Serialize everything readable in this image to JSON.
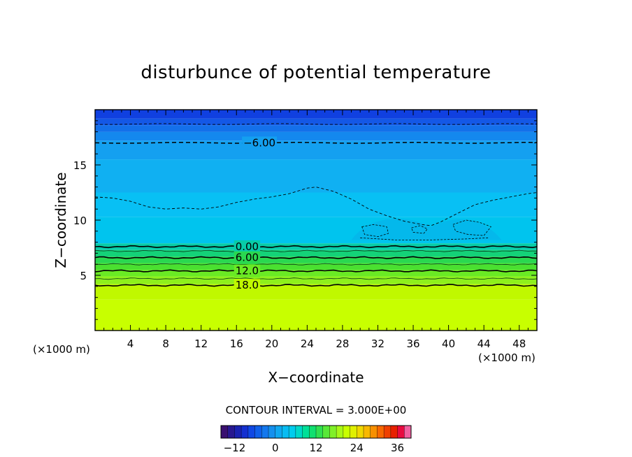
{
  "chart_data": {
    "type": "heatmap",
    "title": "disturbunce of potential temperature",
    "xlabel": "X−coordinate",
    "ylabel": "Z−coordinate",
    "x_unit": "(×1000 m)",
    "z_unit": "(×1000 m)",
    "xlim": [
      0,
      50
    ],
    "ylim": [
      0,
      20
    ],
    "x_ticks": [
      4,
      8,
      12,
      16,
      20,
      24,
      28,
      32,
      36,
      40,
      44,
      48
    ],
    "y_ticks": [
      5,
      10,
      15
    ],
    "contour_interval_text": "CONTOUR INTERVAL = 3.000E+00",
    "contour_labels": [
      {
        "text": "−6.00",
        "x": 18.6,
        "z": 17.0
      },
      {
        "text": "0.00",
        "x": 17.2,
        "z": 7.6
      },
      {
        "text": "6.00",
        "x": 17.2,
        "z": 6.6
      },
      {
        "text": "12.0",
        "x": 17.2,
        "z": 5.4
      },
      {
        "text": "18.0",
        "x": 17.2,
        "z": 4.1
      }
    ],
    "layers": [
      {
        "z0": 0.0,
        "z1": 2.8,
        "color": "#c8ff00"
      },
      {
        "z0": 2.8,
        "z1": 4.2,
        "color": "#c0f800"
      },
      {
        "z0": 4.2,
        "z1": 4.9,
        "color": "#8ef01c"
      },
      {
        "z0": 4.9,
        "z1": 5.5,
        "color": "#6aea24"
      },
      {
        "z0": 5.5,
        "z1": 6.1,
        "color": "#4ae030"
      },
      {
        "z0": 6.1,
        "z1": 6.7,
        "color": "#2ad850"
      },
      {
        "z0": 6.7,
        "z1": 7.3,
        "color": "#14d278"
      },
      {
        "z0": 7.3,
        "z1": 7.9,
        "color": "#08cca8"
      },
      {
        "z0": 7.9,
        "z1": 10.3,
        "color": "#00c4ee"
      },
      {
        "z0": 10.3,
        "z1": 12.5,
        "color": "#08c0f4"
      },
      {
        "z0": 12.5,
        "z1": 15.5,
        "color": "#10b0f2"
      },
      {
        "z0": 15.5,
        "z1": 17.2,
        "color": "#14a0f0"
      },
      {
        "z0": 17.2,
        "z1": 18.0,
        "color": "#1488ee"
      },
      {
        "z0": 18.0,
        "z1": 18.6,
        "color": "#1470ea"
      },
      {
        "z0": 18.6,
        "z1": 19.2,
        "color": "#1458e6"
      },
      {
        "z0": 19.2,
        "z1": 20.0,
        "color": "#1040e0"
      }
    ],
    "solid_contours_z": [
      4.1,
      5.4,
      6.6,
      7.6
    ],
    "thin_contours_z": [
      4.7,
      6.0,
      7.2
    ],
    "dashed_contours": [
      {
        "z": 17.0,
        "bold": true
      },
      {
        "z": 18.7,
        "bold": false
      }
    ],
    "dashed_curve_points": [
      [
        0,
        12.1
      ],
      [
        2,
        12.0
      ],
      [
        4,
        11.7
      ],
      [
        6,
        11.2
      ],
      [
        8,
        11.0
      ],
      [
        10,
        11.1
      ],
      [
        12,
        11.0
      ],
      [
        14,
        11.2
      ],
      [
        16,
        11.6
      ],
      [
        18,
        11.9
      ],
      [
        20,
        12.1
      ],
      [
        22,
        12.4
      ],
      [
        24,
        12.9
      ],
      [
        25,
        13.0
      ],
      [
        27,
        12.6
      ],
      [
        29,
        11.9
      ],
      [
        31,
        11.0
      ],
      [
        33,
        10.4
      ],
      [
        35,
        9.9
      ],
      [
        37,
        9.6
      ],
      [
        38,
        9.5
      ],
      [
        39,
        9.8
      ],
      [
        41,
        10.6
      ],
      [
        43,
        11.4
      ],
      [
        45,
        11.8
      ],
      [
        47,
        12.1
      ],
      [
        49,
        12.4
      ],
      [
        50,
        12.5
      ]
    ],
    "colorbar": {
      "range": [
        -16,
        40
      ],
      "ticks": [
        -12,
        0,
        12,
        24,
        36
      ],
      "tick_labels": [
        "−12",
        "0",
        "12",
        "24",
        "36"
      ],
      "colors": [
        "#3a1070",
        "#281890",
        "#1a22b0",
        "#1430d0",
        "#1048e4",
        "#1060ea",
        "#1478ee",
        "#1490ee",
        "#10a8f0",
        "#08bcf2",
        "#00ccee",
        "#00d8c8",
        "#00e098",
        "#10e070",
        "#30e050",
        "#58e838",
        "#80f028",
        "#a8f818",
        "#c8ff00",
        "#e0f000",
        "#f0d800",
        "#f8b800",
        "#f89000",
        "#f86800",
        "#f04000",
        "#e82000",
        "#e80a40",
        "#f060a0"
      ]
    }
  }
}
